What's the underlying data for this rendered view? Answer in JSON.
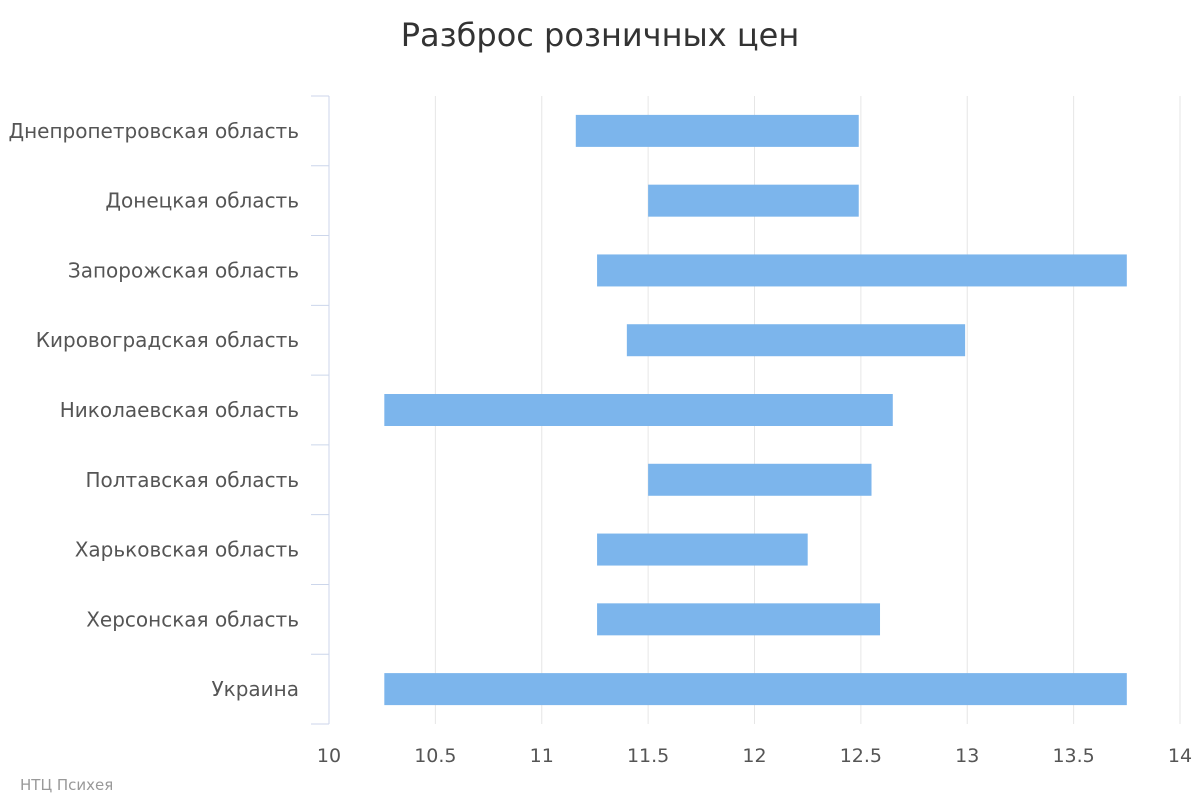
{
  "chart_data": {
    "type": "bar",
    "orientation": "horizontal",
    "title": "Разброс розничных цен",
    "credit": "НТЦ Психея",
    "categories": [
      "Днепропетровская область",
      "Донецкая область",
      "Запорожская область",
      "Кировоградская область",
      "Николаевская область",
      "Полтавская область",
      "Харьковская область",
      "Херсонская область",
      "Украина"
    ],
    "ranges": [
      [
        11.16,
        12.49
      ],
      [
        11.5,
        12.49
      ],
      [
        11.26,
        13.75
      ],
      [
        11.4,
        12.99
      ],
      [
        10.26,
        12.65
      ],
      [
        11.5,
        12.55
      ],
      [
        11.26,
        12.25
      ],
      [
        11.26,
        12.59
      ],
      [
        10.26,
        13.75
      ]
    ],
    "xlim": [
      10,
      14
    ],
    "x_ticks": [
      "10",
      "10.5",
      "11",
      "11.5",
      "12",
      "12.5",
      "13",
      "13.5",
      "14"
    ],
    "x_tick_values": [
      10,
      10.5,
      11,
      11.5,
      12,
      12.5,
      13,
      13.5,
      14
    ],
    "grid": true,
    "legend": "none",
    "colors": {
      "bar": "#7cb5ec",
      "grid": "#e6e6e6",
      "axis": "#ccd6eb"
    }
  }
}
